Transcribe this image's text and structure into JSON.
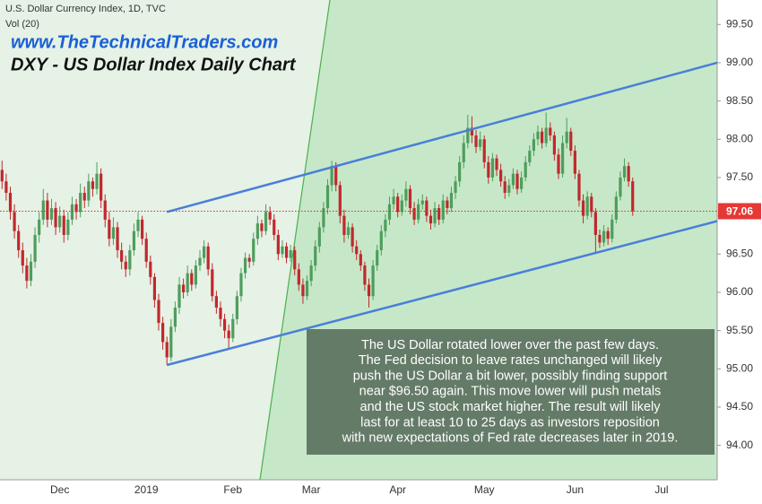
{
  "chart_data": {
    "type": "candlestick",
    "header": "U.S. Dollar Currency Index, 1D, TVC",
    "indicator": "Vol (20)",
    "website": "www.TheTechnicalTraders.com",
    "title": "DXY - US Dollar Index Daily Chart",
    "annotation": [
      "The US Dollar rotated lower over the past few days.",
      "The Fed decision to leave rates unchanged will likely",
      "push the US Dollar a bit lower, possibly finding support",
      "near $96.50 again.  This move lower will push metals",
      "and the US stock market higher.  The result will likely",
      "last for at least 10 to 25 days as investors reposition",
      "with new expectations of Fed rate decreases later in 2019."
    ],
    "categories": [
      null,
      null,
      null,
      null,
      null,
      null,
      null,
      null,
      null,
      null,
      null,
      null,
      null,
      null,
      "Dec",
      null,
      null,
      null,
      null,
      null,
      null,
      null,
      null,
      null,
      null,
      null,
      null,
      null,
      null,
      null,
      null,
      null,
      null,
      null,
      null,
      "2019",
      null,
      null,
      null,
      null,
      null,
      null,
      null,
      null,
      null,
      null,
      null,
      null,
      null,
      null,
      null,
      null,
      null,
      null,
      null,
      null,
      "Feb",
      null,
      null,
      null,
      null,
      null,
      null,
      null,
      null,
      null,
      null,
      null,
      null,
      null,
      null,
      null,
      null,
      null,
      null,
      "Mar",
      null,
      null,
      null,
      null,
      null,
      null,
      null,
      null,
      null,
      null,
      null,
      null,
      null,
      null,
      null,
      null,
      null,
      null,
      null,
      null,
      "Apr",
      null,
      null,
      null,
      null,
      null,
      null,
      null,
      null,
      null,
      null,
      null,
      null,
      null,
      null,
      null,
      null,
      null,
      null,
      null,
      null,
      "May",
      null,
      null,
      null,
      null,
      null,
      null,
      null,
      null,
      null,
      null,
      null,
      null,
      null,
      null,
      null,
      null,
      null,
      null,
      null,
      null,
      null,
      "Jun",
      null,
      null,
      null,
      null,
      null,
      null,
      null,
      null,
      null,
      null,
      null,
      null,
      null,
      null,
      null,
      null,
      null,
      null,
      null,
      null,
      "Jul",
      null,
      null,
      null,
      null,
      null,
      null,
      null,
      null,
      null,
      null,
      null,
      null,
      null
    ],
    "open": [
      97.6,
      97.45,
      97.3,
      97.05,
      96.8,
      96.55,
      96.35,
      96.15,
      96.4,
      96.75,
      96.95,
      97.2,
      96.95,
      97.1,
      96.85,
      97.0,
      96.75,
      96.95,
      97.15,
      97.05,
      97.3,
      97.2,
      97.45,
      97.35,
      97.55,
      97.2,
      96.95,
      96.7,
      96.85,
      96.55,
      96.4,
      96.3,
      96.55,
      96.8,
      96.95,
      96.7,
      96.4,
      96.2,
      95.9,
      95.6,
      95.35,
      95.15,
      95.55,
      95.8,
      96.1,
      96.0,
      96.25,
      96.1,
      96.35,
      96.45,
      96.6,
      96.3,
      95.95,
      95.8,
      95.65,
      95.5,
      95.4,
      95.65,
      95.95,
      96.25,
      96.45,
      96.4,
      96.7,
      96.9,
      96.8,
      97.05,
      96.95,
      96.75,
      96.5,
      96.6,
      96.45,
      96.55,
      96.3,
      96.1,
      95.95,
      96.15,
      96.35,
      96.6,
      96.85,
      97.1,
      97.4,
      97.65,
      97.4,
      97.0,
      96.75,
      96.85,
      96.6,
      96.5,
      96.35,
      96.1,
      95.95,
      96.35,
      96.55,
      96.8,
      96.95,
      97.15,
      97.25,
      97.05,
      97.2,
      97.35,
      97.1,
      96.95,
      97.15,
      97.2,
      97.0,
      96.9,
      97.1,
      96.95,
      97.2,
      97.1,
      97.3,
      97.45,
      97.7,
      97.95,
      98.15,
      98.05,
      97.9,
      98.0,
      97.7,
      97.5,
      97.75,
      97.6,
      97.45,
      97.3,
      97.4,
      97.55,
      97.35,
      97.5,
      97.7,
      97.85,
      98.0,
      98.1,
      97.95,
      98.15,
      98.05,
      97.8,
      97.55,
      97.95,
      98.1,
      97.85,
      97.55,
      97.2,
      97.0,
      97.25,
      97.05,
      96.75,
      96.65,
      96.8,
      96.7,
      96.95,
      97.25,
      97.5,
      97.65,
      97.45,
      null,
      null,
      null,
      null,
      null,
      null,
      null,
      null,
      null,
      null,
      null,
      null,
      null,
      null,
      null,
      null,
      null,
      null,
      null,
      null
    ],
    "high": [
      97.72,
      97.55,
      97.38,
      97.15,
      96.88,
      96.65,
      96.45,
      96.5,
      96.85,
      97.05,
      97.35,
      97.3,
      97.22,
      97.18,
      97.12,
      97.08,
      97.05,
      97.25,
      97.22,
      97.42,
      97.38,
      97.55,
      97.5,
      97.7,
      97.62,
      97.28,
      97.05,
      96.98,
      96.92,
      96.65,
      96.48,
      96.62,
      96.9,
      97.05,
      97.0,
      96.78,
      96.48,
      96.25,
      95.98,
      95.68,
      95.42,
      95.65,
      95.88,
      96.2,
      96.18,
      96.35,
      96.3,
      96.42,
      96.55,
      96.68,
      96.65,
      96.38,
      96.02,
      95.88,
      95.72,
      95.58,
      95.72,
      96.02,
      96.32,
      96.52,
      96.5,
      96.78,
      97.0,
      96.95,
      97.15,
      97.12,
      97.02,
      96.82,
      96.68,
      96.65,
      96.62,
      96.6,
      96.38,
      96.18,
      96.22,
      96.42,
      96.68,
      96.92,
      97.18,
      97.48,
      97.72,
      97.7,
      97.45,
      97.08,
      96.92,
      96.9,
      96.68,
      96.55,
      96.4,
      96.18,
      96.42,
      96.62,
      96.88,
      97.02,
      97.25,
      97.35,
      97.3,
      97.28,
      97.45,
      97.4,
      97.18,
      97.22,
      97.28,
      97.25,
      97.08,
      97.18,
      97.15,
      97.28,
      97.25,
      97.38,
      97.52,
      97.78,
      98.05,
      98.32,
      98.3,
      98.12,
      98.1,
      98.05,
      97.78,
      97.82,
      97.8,
      97.68,
      97.52,
      97.48,
      97.62,
      97.6,
      97.58,
      97.78,
      97.92,
      98.08,
      98.18,
      98.15,
      98.35,
      98.22,
      98.1,
      97.88,
      98.05,
      98.28,
      98.15,
      97.92,
      97.6,
      97.28,
      97.32,
      97.3,
      97.1,
      96.82,
      96.88,
      96.85,
      97.02,
      97.32,
      97.58,
      97.75,
      97.7,
      97.5,
      null,
      null,
      null,
      null,
      null,
      null,
      null,
      null,
      null,
      null,
      null,
      null,
      null,
      null,
      null,
      null,
      null,
      null,
      null,
      null
    ],
    "low": [
      97.35,
      97.2,
      96.95,
      96.7,
      96.45,
      96.25,
      96.05,
      96.08,
      96.32,
      96.65,
      96.88,
      96.85,
      96.88,
      96.75,
      96.78,
      96.65,
      96.68,
      96.88,
      96.95,
      96.98,
      97.1,
      97.12,
      97.25,
      97.28,
      97.1,
      96.85,
      96.6,
      96.62,
      96.45,
      96.3,
      96.2,
      96.22,
      96.48,
      96.72,
      96.62,
      96.32,
      96.1,
      95.8,
      95.5,
      95.25,
      95.05,
      95.1,
      95.48,
      95.72,
      95.92,
      95.95,
      96.02,
      96.05,
      96.28,
      96.38,
      96.22,
      95.88,
      95.72,
      95.55,
      95.4,
      95.25,
      95.35,
      95.58,
      95.88,
      96.18,
      96.32,
      96.35,
      96.62,
      96.72,
      96.75,
      96.88,
      96.68,
      96.42,
      96.45,
      96.38,
      96.4,
      96.22,
      96.02,
      95.85,
      95.9,
      96.08,
      96.28,
      96.52,
      96.78,
      97.02,
      97.32,
      97.32,
      96.9,
      96.65,
      96.7,
      96.52,
      96.42,
      96.28,
      96.02,
      95.8,
      95.9,
      96.28,
      96.48,
      96.72,
      96.88,
      97.08,
      96.98,
      97.0,
      97.12,
      97.02,
      96.88,
      96.9,
      97.08,
      96.92,
      96.82,
      96.85,
      96.88,
      96.9,
      97.02,
      97.05,
      97.22,
      97.38,
      97.62,
      97.88,
      97.95,
      97.82,
      97.85,
      97.62,
      97.42,
      97.45,
      97.52,
      97.38,
      97.22,
      97.25,
      97.35,
      97.28,
      97.3,
      97.45,
      97.65,
      97.78,
      97.92,
      97.88,
      97.9,
      97.98,
      97.72,
      97.48,
      97.5,
      97.88,
      97.78,
      97.48,
      97.12,
      96.9,
      96.95,
      96.98,
      96.5,
      96.58,
      96.6,
      96.62,
      96.65,
      96.9,
      97.2,
      97.45,
      97.38,
      97.0,
      null,
      null,
      null,
      null,
      null,
      null,
      null,
      null,
      null,
      null,
      null,
      null,
      null,
      null,
      null,
      null,
      null,
      null,
      null,
      null
    ],
    "close": [
      97.45,
      97.3,
      97.05,
      96.8,
      96.55,
      96.35,
      96.15,
      96.4,
      96.75,
      96.95,
      97.2,
      96.95,
      97.1,
      96.85,
      97.0,
      96.75,
      96.95,
      97.15,
      97.05,
      97.3,
      97.2,
      97.45,
      97.35,
      97.55,
      97.2,
      96.95,
      96.7,
      96.85,
      96.55,
      96.4,
      96.3,
      96.55,
      96.8,
      96.95,
      96.7,
      96.4,
      96.2,
      95.9,
      95.6,
      95.35,
      95.15,
      95.55,
      95.8,
      96.1,
      96.0,
      96.25,
      96.1,
      96.35,
      96.45,
      96.6,
      96.3,
      95.95,
      95.8,
      95.65,
      95.5,
      95.4,
      95.65,
      95.95,
      96.25,
      96.45,
      96.4,
      96.7,
      96.9,
      96.8,
      97.05,
      96.95,
      96.75,
      96.5,
      96.6,
      96.45,
      96.55,
      96.3,
      96.1,
      95.95,
      96.15,
      96.35,
      96.6,
      96.85,
      97.1,
      97.4,
      97.65,
      97.4,
      97.0,
      96.75,
      96.85,
      96.6,
      96.5,
      96.35,
      96.1,
      95.95,
      96.35,
      96.55,
      96.8,
      96.95,
      97.15,
      97.25,
      97.05,
      97.2,
      97.35,
      97.1,
      96.95,
      97.15,
      97.2,
      97.0,
      96.9,
      97.1,
      96.95,
      97.2,
      97.1,
      97.3,
      97.45,
      97.7,
      97.95,
      98.15,
      98.05,
      97.9,
      98.0,
      97.7,
      97.5,
      97.75,
      97.6,
      97.45,
      97.3,
      97.4,
      97.55,
      97.35,
      97.5,
      97.7,
      97.85,
      98.0,
      98.1,
      97.95,
      98.15,
      98.05,
      97.8,
      97.55,
      97.95,
      98.1,
      97.85,
      97.55,
      97.2,
      97.0,
      97.25,
      97.05,
      96.75,
      96.65,
      96.8,
      96.7,
      96.95,
      97.25,
      97.5,
      97.65,
      97.45,
      97.06,
      null,
      null,
      null,
      null,
      null,
      null,
      null,
      null,
      null,
      null,
      null,
      null,
      null,
      null,
      null,
      null,
      null,
      null,
      null,
      null
    ],
    "up_color": "#4f9d5d",
    "down_color": "#c0282d",
    "ylim": [
      93.55,
      99.82
    ],
    "yticks": [
      {
        "value": 94,
        "label": "94.00"
      },
      {
        "value": 94.5,
        "label": "94.50"
      },
      {
        "value": 95,
        "label": "95.00"
      },
      {
        "value": 95.5,
        "label": "95.50"
      },
      {
        "value": 96,
        "label": "96.00"
      },
      {
        "value": 96.5,
        "label": "96.50"
      },
      {
        "value": 97,
        "label": "97.00"
      },
      {
        "value": 97.5,
        "label": "97.50"
      },
      {
        "value": 98,
        "label": "98.00"
      },
      {
        "value": 98.5,
        "label": "98.50"
      },
      {
        "value": 99,
        "label": "99.00"
      },
      {
        "value": 99.5,
        "label": "99.50"
      }
    ],
    "trendlines": [
      {
        "x": [
          40,
          173.5
        ],
        "y": [
          97.05,
          99.0
        ]
      },
      {
        "x": [
          40,
          173.5
        ],
        "y": [
          95.05,
          96.93
        ]
      }
    ],
    "trendline_color": "#4a7fd9",
    "grid": false
  }
}
